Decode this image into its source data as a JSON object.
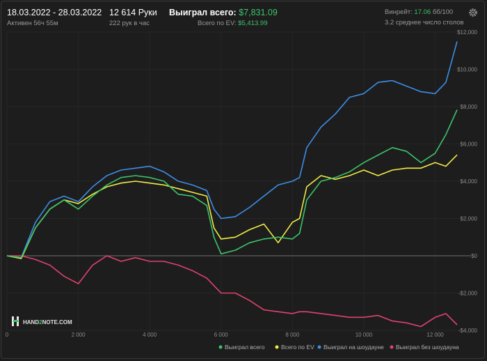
{
  "header": {
    "date_range": "18.03.2022 - 28.03.2022",
    "active": "Активен 56ч 55м",
    "hands": "12 614 Руки",
    "hands_per_hour": "222 рук в час",
    "won_total_label": "Выиграл всего:",
    "won_total_value": "$7,831.09",
    "ev_total_label": "Всего по EV:",
    "ev_total_value": "$5,413.99",
    "winrate_label": "Винрейт:",
    "winrate_value": "17.06",
    "winrate_unit": "бб/100",
    "avg_tables": "3.2 среднее число столов",
    "settings_icon": "gear-icon"
  },
  "logo": {
    "text_a": "HAND",
    "text_b": "2",
    "text_c": "NOTE.COM",
    "icon": "hand2note-logo-icon"
  },
  "chart_data": {
    "type": "line",
    "title": "",
    "xlabel": "",
    "ylabel": "",
    "xlim": [
      0,
      12614
    ],
    "ylim": [
      -4000,
      12000
    ],
    "x_ticks": [
      0,
      2000,
      4000,
      6000,
      8000,
      10000,
      12000
    ],
    "x_tick_labels": [
      "0",
      "2 000",
      "4 000",
      "6 000",
      "8 000",
      "10 000",
      "12 000"
    ],
    "y_ticks": [
      -4000,
      -2000,
      0,
      2000,
      4000,
      6000,
      8000,
      10000,
      12000
    ],
    "y_tick_labels": [
      "-$4,000",
      "-$2,000",
      "$0",
      "$2,000",
      "$4,000",
      "$6,000",
      "$8,000",
      "$10,000",
      "$12,000"
    ],
    "x": [
      0,
      400,
      800,
      1200,
      1600,
      2000,
      2400,
      2800,
      3200,
      3600,
      4000,
      4400,
      4800,
      5200,
      5600,
      5800,
      6000,
      6400,
      6800,
      7200,
      7600,
      8000,
      8200,
      8400,
      8800,
      9200,
      9600,
      10000,
      10400,
      10800,
      11200,
      11600,
      12000,
      12300,
      12614
    ],
    "series": [
      {
        "name": "Выиграл всего",
        "color": "#3cc46a",
        "values": [
          0,
          -100,
          1500,
          2500,
          3000,
          2500,
          3200,
          3800,
          4200,
          4300,
          4200,
          4000,
          3300,
          3200,
          2700,
          1000,
          100,
          300,
          700,
          900,
          1000,
          900,
          1200,
          3000,
          4000,
          4200,
          4500,
          5000,
          5400,
          5800,
          5600,
          5000,
          5500,
          6500,
          7831
        ]
      },
      {
        "name": "Всего по EV",
        "color": "#f2ec47",
        "values": [
          0,
          -150,
          1500,
          2500,
          3000,
          2800,
          3300,
          3700,
          3900,
          4000,
          3900,
          3800,
          3600,
          3400,
          3200,
          1500,
          900,
          1000,
          1400,
          1700,
          700,
          1800,
          2000,
          3700,
          4300,
          4100,
          4300,
          4600,
          4300,
          4600,
          4700,
          4700,
          5000,
          4800,
          5414
        ]
      },
      {
        "name": "Выиграл на шоудауне",
        "color": "#3d8ee8",
        "values": [
          0,
          -100,
          1800,
          2900,
          3200,
          2900,
          3700,
          4300,
          4600,
          4700,
          4800,
          4500,
          4000,
          3800,
          3500,
          2500,
          2000,
          2100,
          2600,
          3200,
          3800,
          4000,
          4200,
          5800,
          6900,
          7600,
          8500,
          8700,
          9300,
          9400,
          9100,
          8800,
          8700,
          9300,
          11500
        ]
      },
      {
        "name": "Выиграл без шоудауна",
        "color": "#e0426f",
        "values": [
          0,
          0,
          -200,
          -500,
          -1100,
          -1500,
          -500,
          0,
          -300,
          -100,
          -300,
          -300,
          -500,
          -800,
          -1200,
          -1600,
          -2000,
          -2000,
          -2400,
          -2900,
          -3000,
          -3100,
          -3000,
          -3000,
          -3100,
          -3200,
          -3300,
          -3300,
          -3200,
          -3500,
          -3600,
          -3800,
          -3300,
          -3100,
          -3700
        ]
      }
    ],
    "legend_position": "bottom-right"
  }
}
